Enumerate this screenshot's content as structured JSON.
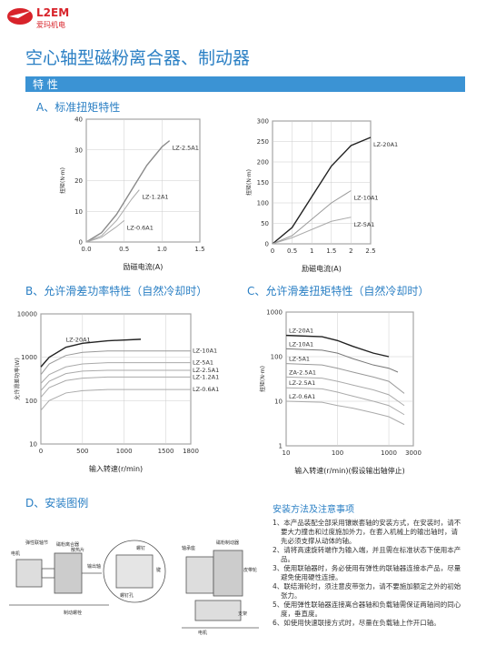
{
  "header": {
    "logo_text": "L2EM",
    "logo_sub": "爱玛机电",
    "title": "空心轴型磁粉离合器、制动器",
    "section": "特 性"
  },
  "headings": {
    "a": "A、标准扭矩特性",
    "b": "B、允许滑差功率特性（自然冷却时）",
    "c": "C、允许滑差扭矩特性（自然冷却时）",
    "d": "D、安装图例"
  },
  "chart_data": [
    {
      "type": "line",
      "x_label": "励磁电流(A)",
      "y_label": "扭矩(N·m)",
      "xlim": [
        0,
        1.5
      ],
      "ylim": [
        0,
        40
      ],
      "xticks": [
        {
          "value": 0,
          "label": "0.0"
        },
        {
          "value": 0.5,
          "label": "0.5"
        },
        {
          "value": 1,
          "label": "1.0"
        },
        {
          "value": 1.5,
          "label": "1.5"
        }
      ],
      "yticks": [
        0,
        10,
        20,
        30,
        40
      ],
      "grid": true,
      "series": [
        {
          "name": "LZ-2.5A1",
          "color": "#8a8a8a",
          "x": [
            0,
            0.2,
            0.4,
            0.6,
            0.8,
            1.0,
            1.1
          ],
          "values": [
            0,
            3,
            9,
            17,
            25,
            31,
            33
          ]
        },
        {
          "name": "LZ-1.2A1",
          "color": "#aaaaaa",
          "x": [
            0,
            0.2,
            0.4,
            0.6,
            0.7
          ],
          "values": [
            0,
            2,
            7,
            14,
            17
          ]
        },
        {
          "name": "LZ-0.6A1",
          "color": "#aaaaaa",
          "x": [
            0,
            0.2,
            0.4,
            0.5
          ],
          "values": [
            0,
            1.5,
            5,
            7
          ]
        }
      ]
    },
    {
      "type": "line",
      "x_label": "励磁电流(A)",
      "y_label": "扭矩(N·m)",
      "xlim": [
        0,
        2.5
      ],
      "ylim": [
        0,
        300
      ],
      "xticks": [
        0,
        0.5,
        1,
        1.5,
        2,
        2.5
      ],
      "yticks": [
        0,
        50,
        100,
        150,
        200,
        250,
        300
      ],
      "grid": true,
      "series": [
        {
          "name": "LZ-20A1",
          "color": "#222222",
          "x": [
            0,
            0.5,
            1,
            1.5,
            2,
            2.5
          ],
          "values": [
            0,
            40,
            115,
            190,
            240,
            260
          ]
        },
        {
          "name": "LZ-10A1",
          "color": "#999999",
          "x": [
            0,
            0.5,
            1,
            1.5,
            2
          ],
          "values": [
            0,
            20,
            60,
            100,
            130
          ]
        },
        {
          "name": "LZ-5A1",
          "color": "#aaaaaa",
          "x": [
            0,
            0.5,
            1,
            1.5,
            2
          ],
          "values": [
            0,
            15,
            35,
            55,
            65
          ]
        }
      ]
    },
    {
      "type": "line",
      "x_label": "输入转速(r/min)",
      "y_label": "允许滑差功率(W)",
      "xlim": [
        0,
        1800
      ],
      "ylim": [
        10,
        10000
      ],
      "ylog": true,
      "xticks": [
        0,
        500,
        1000,
        1500,
        1800
      ],
      "yticks": [
        10,
        100,
        1000,
        10000
      ],
      "grid": true,
      "series": [
        {
          "name": "LZ-20A1",
          "color": "#222222",
          "x": [
            0,
            100,
            300,
            500,
            800,
            1200
          ],
          "values": [
            600,
            1000,
            1700,
            2100,
            2400,
            2600
          ]
        },
        {
          "name": "LZ-10A1",
          "color": "#999999",
          "x": [
            0,
            100,
            300,
            500,
            800,
            1200,
            1800
          ],
          "values": [
            400,
            700,
            1100,
            1300,
            1400,
            1400,
            1400
          ]
        },
        {
          "name": "LZ-5A1",
          "color": "#aaaaaa",
          "x": [
            0,
            100,
            300,
            500,
            800,
            1200,
            1800
          ],
          "values": [
            250,
            400,
            600,
            700,
            750,
            750,
            750
          ]
        },
        {
          "name": "LZ-2.5A1",
          "color": "#aaaaaa",
          "x": [
            0,
            100,
            300,
            500,
            800,
            1200,
            1800
          ],
          "values": [
            170,
            280,
            420,
            480,
            500,
            500,
            500
          ]
        },
        {
          "name": "LZ-1.2A1",
          "color": "#aaaaaa",
          "x": [
            0,
            100,
            300,
            500,
            800,
            1200,
            1800
          ],
          "values": [
            120,
            200,
            290,
            330,
            350,
            350,
            350
          ]
        },
        {
          "name": "LZ-0.6A1",
          "color": "#aaaaaa",
          "x": [
            0,
            100,
            300,
            500,
            800,
            1200,
            1800
          ],
          "values": [
            60,
            100,
            150,
            170,
            180,
            180,
            180
          ]
        }
      ]
    },
    {
      "type": "line",
      "x_label": "输入转速(r/min)(假设输出轴停止)",
      "y_label": "扭矩(N·m)",
      "xlim": [
        10,
        3000
      ],
      "ylim": [
        1,
        1000
      ],
      "xlog": true,
      "ylog": true,
      "xticks": [
        10,
        100,
        1000,
        3000
      ],
      "yticks": [
        1,
        10,
        100,
        1000
      ],
      "grid": true,
      "series": [
        {
          "name": "LZ-20A1",
          "color": "#222222",
          "x": [
            10,
            50,
            100,
            200,
            500,
            1000
          ],
          "values": [
            300,
            280,
            230,
            170,
            120,
            100
          ]
        },
        {
          "name": "LZ-10A1",
          "color": "#777777",
          "x": [
            10,
            50,
            100,
            200,
            500,
            1000,
            1500
          ],
          "values": [
            150,
            140,
            120,
            90,
            65,
            55,
            45
          ]
        },
        {
          "name": "LZ-5A1",
          "color": "#999999",
          "x": [
            10,
            50,
            100,
            200,
            500,
            1000,
            2000
          ],
          "values": [
            70,
            65,
            55,
            45,
            35,
            28,
            15
          ]
        },
        {
          "name": "ZA-2.5A1",
          "color": "#aaaaaa",
          "x": [
            10,
            50,
            100,
            200,
            500,
            1000,
            2000
          ],
          "values": [
            35,
            33,
            28,
            23,
            18,
            14,
            8
          ]
        },
        {
          "name": "LZ-2.5A1",
          "color": "#aaaaaa",
          "x": [
            10,
            50,
            100,
            200,
            500,
            1000,
            2000
          ],
          "values": [
            20,
            19,
            16,
            13,
            10,
            8,
            5
          ]
        },
        {
          "name": "LZ-0.6A1",
          "color": "#aaaaaa",
          "x": [
            10,
            50,
            100,
            200,
            500,
            1000,
            2000
          ],
          "values": [
            10,
            9.5,
            8,
            7,
            5.5,
            4.5,
            3
          ]
        }
      ]
    }
  ],
  "diagram": {
    "left_labels": [
      "电机",
      "弹性联轴节",
      "磁粉离合器",
      "散热片",
      "输出轴",
      "制动螺栓"
    ],
    "zoom_labels": [
      "螺钉",
      "键",
      "螺钉孔"
    ],
    "right_labels": [
      "轴承座",
      "磁粉制动器",
      "皮带轮",
      "电机",
      "支架"
    ]
  },
  "notes": {
    "title": "安装方法及注意事项",
    "items": [
      "1、本产品装配全部采用镶嵌套轴的安装方式，在安装时，请不要大力撞击和过度施加外力，在套入机械上的输出轴时，请先必须支撑从动体的轴。",
      "2、请将高速旋转端作为输入端，并且需在标准状态下使用本产品。",
      "3、使用联轴器时，务必使用有弹性的联轴器连接本产品，尽量避免使用硬性连接。",
      "4、联结滑轮时，须注意皮带张力，请不要施加额定之外的初始张力。",
      "5、使用弹性联轴器连接离合器轴和负载轴需保证两轴间的同心度，垂直度。",
      "6、如使用快速联接方式时，尽量在负载轴上作开口轴。"
    ]
  }
}
